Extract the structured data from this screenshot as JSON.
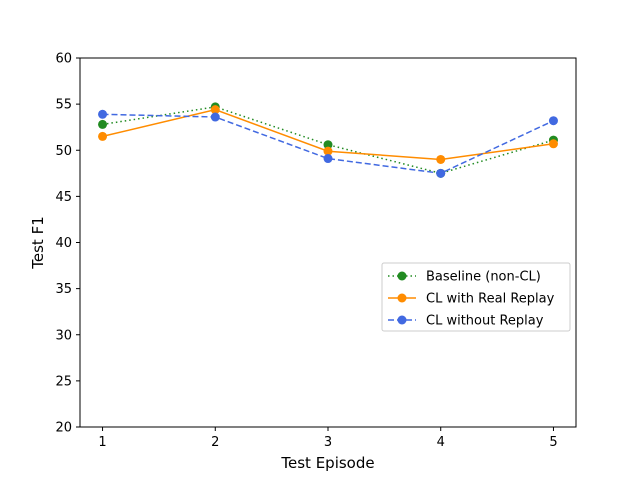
{
  "chart_data": {
    "type": "line",
    "title": "",
    "xlabel": "Test Episode",
    "ylabel": "Test F1",
    "x": [
      1,
      2,
      3,
      4,
      5
    ],
    "x_ticks": [
      "1",
      "2",
      "3",
      "4",
      "5"
    ],
    "xlim": [
      0.8,
      5.2
    ],
    "ylim": [
      20,
      60
    ],
    "y_ticks": [
      "20",
      "25",
      "30",
      "35",
      "40",
      "45",
      "50",
      "55",
      "60"
    ],
    "grid": false,
    "legend_position": "center-right",
    "series": [
      {
        "name": "Baseline (non-CL)",
        "color": "#228b22",
        "style": "dotted",
        "values": [
          52.8,
          54.7,
          50.6,
          47.5,
          51.1
        ]
      },
      {
        "name": "CL with Real Replay",
        "color": "#ff8c00",
        "style": "solid",
        "values": [
          51.5,
          54.4,
          49.9,
          49.0,
          50.7
        ]
      },
      {
        "name": "CL without Replay",
        "color": "#4169e1",
        "style": "dashed",
        "values": [
          53.9,
          53.6,
          49.1,
          47.5,
          53.2
        ]
      }
    ]
  }
}
